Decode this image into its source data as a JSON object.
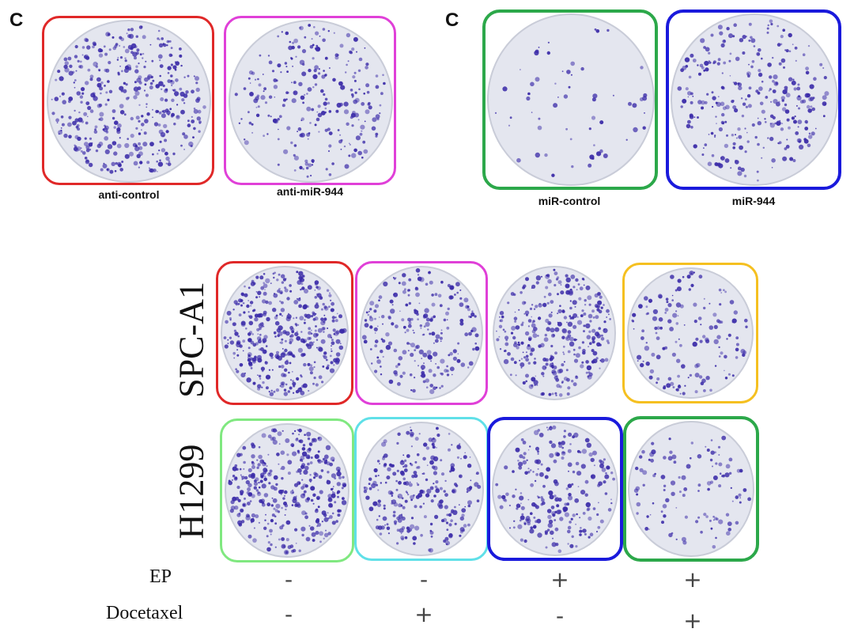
{
  "top_left": {
    "panel_letter": "C",
    "labels": [
      "anti-control",
      "anti-miR-944"
    ],
    "frame_colors": [
      "#e02828",
      "#e040d8"
    ]
  },
  "top_right": {
    "panel_letter": "C",
    "labels": [
      "miR-control",
      "miR-944"
    ],
    "frame_colors": [
      "#2ca84a",
      "#1a1adc"
    ]
  },
  "bottom": {
    "row_labels": [
      "SPC-A1",
      "H1299"
    ],
    "frame_colors": {
      "spc": [
        "#e02828",
        "#e040d8",
        null,
        "#f5c020"
      ],
      "h1299": [
        "#80e880",
        "#60e0e8",
        "#1a1adc",
        "#2ca84a"
      ]
    },
    "treatments": [
      {
        "name": "EP",
        "values": [
          "-",
          "-",
          "+",
          "+"
        ]
      },
      {
        "name": "Docetaxel",
        "values": [
          "-",
          "+",
          "-",
          "+"
        ]
      }
    ]
  },
  "colors": {
    "colony": "#3a2aa8",
    "plate": "#e4e6ef"
  },
  "plates": [
    {
      "id": "tl1",
      "density": 420
    },
    {
      "id": "tl2",
      "density": 260
    },
    {
      "id": "tr1",
      "density": 60
    },
    {
      "id": "tr2",
      "density": 300
    },
    {
      "id": "b11",
      "density": 420
    },
    {
      "id": "b12",
      "density": 230
    },
    {
      "id": "b13",
      "density": 320
    },
    {
      "id": "b14",
      "density": 150
    },
    {
      "id": "b21",
      "density": 360
    },
    {
      "id": "b22",
      "density": 260
    },
    {
      "id": "b23",
      "density": 230
    },
    {
      "id": "b24",
      "density": 110
    }
  ]
}
